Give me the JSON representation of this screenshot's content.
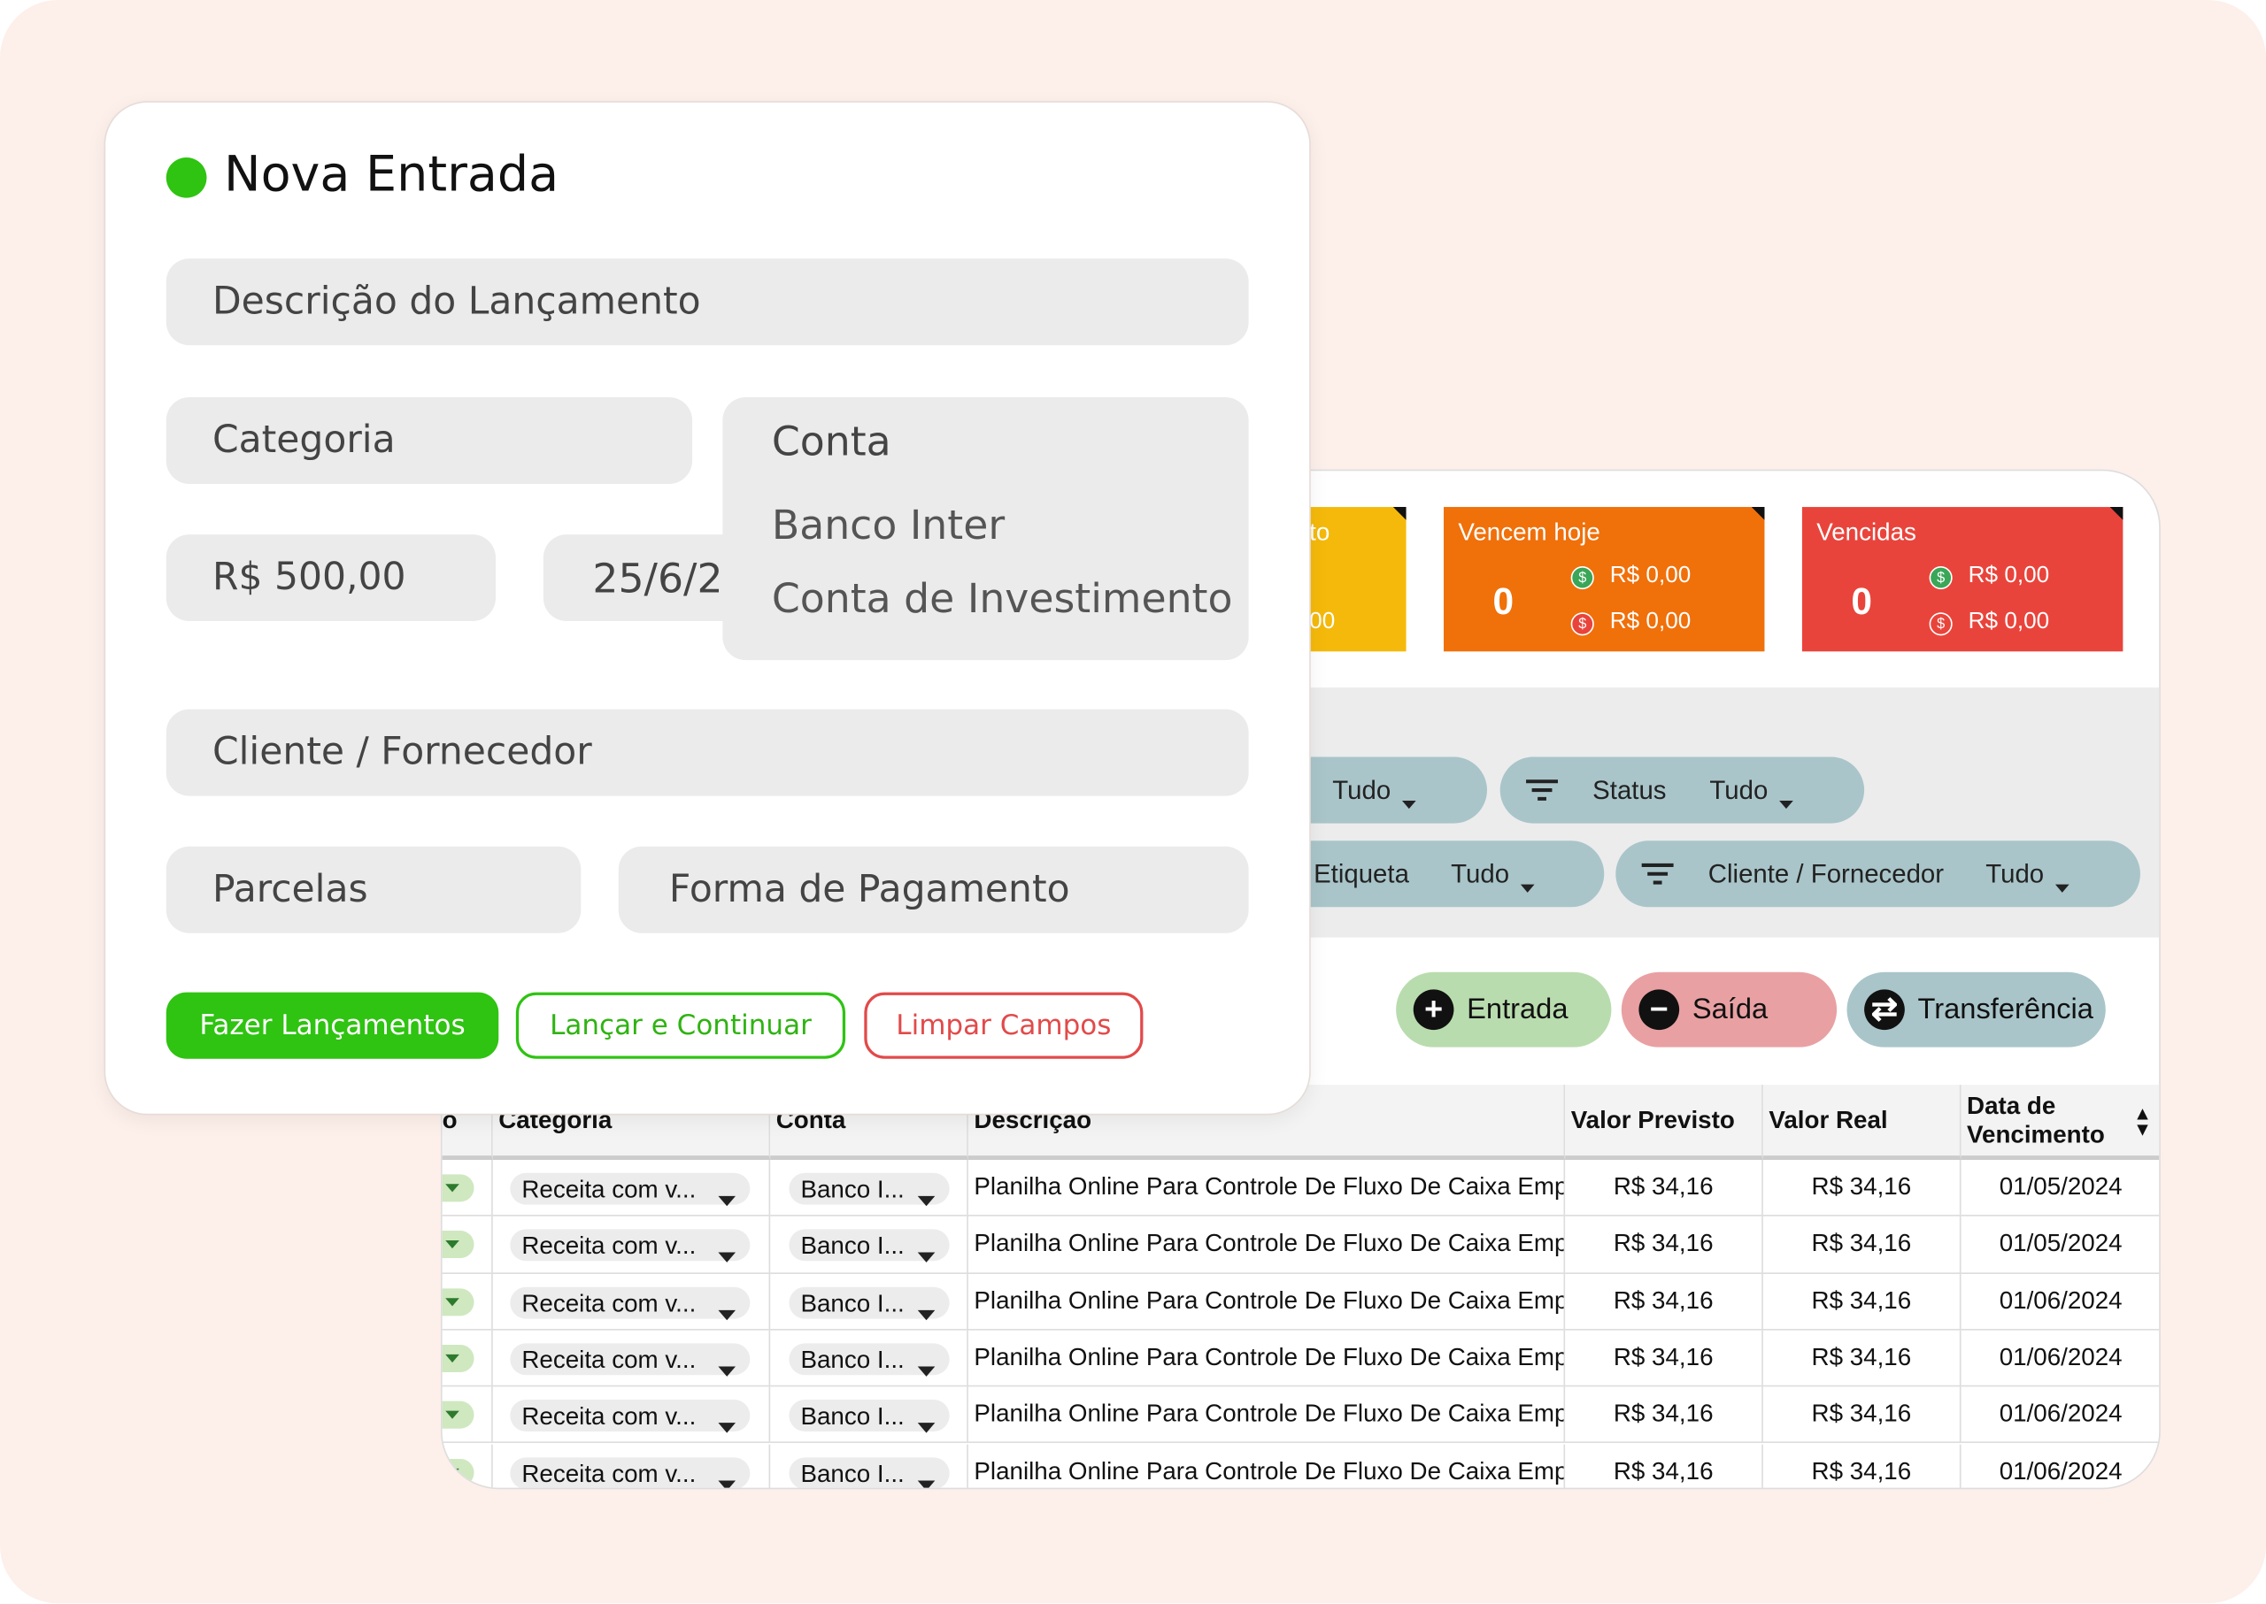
{
  "form": {
    "title": "Nova Entrada",
    "description": "Descrição do Lançamento",
    "category": "Categoria",
    "account": "Conta",
    "account_options": [
      "Banco Inter",
      "Conta de Investimento"
    ],
    "amount": "R$ 500,00",
    "date": "25/6/2",
    "client": "Cliente / Fornecedor",
    "installments": "Parcelas",
    "payment_method": "Forma de Pagamento",
    "buttons": [
      "Fazer Lançamentos",
      "Lançar e Continuar",
      "Limpar Campos"
    ]
  },
  "summary_cards": [
    {
      "title": "to",
      "values": [
        "00"
      ]
    },
    {
      "title": "Vencem hoje",
      "count": "0",
      "values": [
        "R$ 0,00",
        "R$ 0,00"
      ]
    },
    {
      "title": "Vencidas",
      "count": "0",
      "values": [
        "R$ 0,00",
        "R$ 0,00"
      ]
    }
  ],
  "filters": [
    {
      "value": "Tudo"
    },
    {
      "label": "Status",
      "value": "Tudo"
    },
    {
      "label": "Etiqueta",
      "value": "Tudo"
    },
    {
      "label": "Cliente / Fornecedor",
      "value": "Tudo"
    }
  ],
  "actions": [
    "Entrada",
    "Saída",
    "Transferência"
  ],
  "table": {
    "headers": [
      "o",
      "Categoria",
      "Conta",
      "Descrição",
      "Valor Previsto",
      "Valor Real",
      "Data de Vencimento"
    ],
    "rows": [
      [
        "Receita com v...",
        "Banco I...",
        "Planilha Online Para Controle De Fluxo De Caixa Emp",
        "R$ 34,16",
        "R$ 34,16",
        "01/05/2024"
      ],
      [
        "Receita com v...",
        "Banco I...",
        "Planilha Online Para Controle De Fluxo De Caixa Emp",
        "R$ 34,16",
        "R$ 34,16",
        "01/05/2024"
      ],
      [
        "Receita com v...",
        "Banco I...",
        "Planilha Online Para Controle De Fluxo De Caixa Emp",
        "R$ 34,16",
        "R$ 34,16",
        "01/06/2024"
      ],
      [
        "Receita com v...",
        "Banco I...",
        "Planilha Online Para Controle De Fluxo De Caixa Emp",
        "R$ 34,16",
        "R$ 34,16",
        "01/06/2024"
      ],
      [
        "Receita com v...",
        "Banco I...",
        "Planilha Online Para Controle De Fluxo De Caixa Emp",
        "R$ 34,16",
        "R$ 34,16",
        "01/06/2024"
      ],
      [
        "Receita com v...",
        "Banco I...",
        "Planilha Online Para Controle De Fluxo De Caixa Emp",
        "R$ 34,16",
        "R$ 34,16",
        "01/06/2024"
      ]
    ]
  }
}
